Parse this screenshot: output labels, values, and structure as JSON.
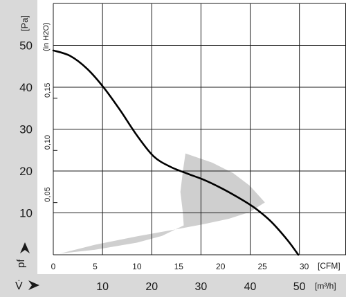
{
  "chart_data": {
    "type": "line",
    "title": "",
    "xlabel": "",
    "ylabel": "",
    "units": {
      "y_left": "[Pa]",
      "y_inner": "(in H2O)",
      "x_top": "[CFM]",
      "x_bottom": "[m³/h]"
    },
    "axis_symbols": {
      "pressure": "pf",
      "flow": "V̇"
    },
    "y_pa_ticks": [
      10,
      20,
      30,
      40,
      50
    ],
    "y_inh2o_ticks": [
      "0,05",
      "0,10",
      "0,15"
    ],
    "y_inh2o_values": [
      0.05,
      0.1,
      0.15
    ],
    "x_cfm_ticks": [
      0,
      5,
      10,
      15,
      20,
      25,
      30
    ],
    "x_m3h_ticks": [
      10,
      20,
      30,
      40,
      50
    ],
    "xlim_cfm": [
      0,
      35
    ],
    "ylim_pa": [
      0,
      60
    ],
    "grid": true,
    "series": [
      {
        "x_cfm": [
          0,
          2,
          4,
          6,
          8,
          10,
          12,
          14,
          16,
          18,
          20,
          22,
          24,
          26,
          28,
          29.3
        ],
        "y_pa": [
          48.8,
          47.5,
          44.5,
          40.0,
          34.5,
          28.5,
          23.5,
          21.0,
          19.4,
          17.9,
          16.0,
          13.8,
          11.3,
          8.0,
          3.5,
          0
        ]
      }
    ],
    "working_area": {
      "color": "#cfcfcf",
      "outline_cfm_pa": [
        [
          0.8,
          0.3
        ],
        [
          5,
          1.2
        ],
        [
          10,
          2.9
        ],
        [
          13,
          4.5
        ],
        [
          15.6,
          7.0
        ],
        [
          15.5,
          10.0
        ],
        [
          15.2,
          15.0
        ],
        [
          15.5,
          20.0
        ],
        [
          15.8,
          24.2
        ],
        [
          19,
          22.0
        ],
        [
          21.5,
          19.5
        ],
        [
          23.5,
          16.5
        ],
        [
          25.3,
          12.5
        ],
        [
          23.5,
          10.2
        ],
        [
          21,
          8.6
        ],
        [
          18,
          7.3
        ],
        [
          15,
          6.2
        ],
        [
          10,
          4.4
        ],
        [
          5,
          2.4
        ],
        [
          0.8,
          0.3
        ]
      ]
    },
    "colors": {
      "panel": "#d9d9d9",
      "grid": "#1a1a1a",
      "curve": "#000000",
      "text": "#1a1a1a"
    }
  }
}
